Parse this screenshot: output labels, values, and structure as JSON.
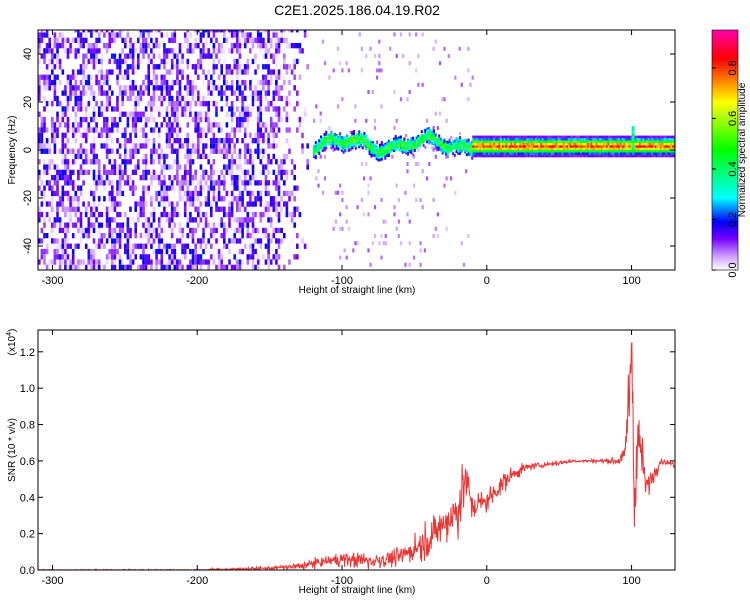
{
  "title": "C2E1.2025.186.04.19.R02",
  "chart_data": [
    {
      "type": "heatmap",
      "xlabel": "Height of straight line (km)",
      "ylabel": "Frequency (Hz)",
      "xlim": [
        -310,
        130
      ],
      "ylim": [
        -50,
        50
      ],
      "xticks": [
        -300,
        -200,
        -100,
        0,
        100
      ],
      "xtick_labels": [
        "-300",
        "-200",
        "-100",
        "0",
        "100"
      ],
      "yticks": [
        -40,
        -20,
        0,
        20,
        40
      ],
      "ytick_labels": [
        "-40",
        "-20",
        "0",
        "20",
        "40"
      ],
      "colorbar": {
        "label": "Normalized spectral amplitude",
        "range": [
          0,
          0.95
        ],
        "ticks": [
          0.0,
          0.2,
          0.4,
          0.6,
          0.8
        ],
        "tick_labels": [
          "0.0",
          "0.2",
          "0.4",
          "0.6",
          "0.8"
        ],
        "colormap": [
          "#ffffff",
          "#cc99ff",
          "#7700ff",
          "#0000ff",
          "#00ffff",
          "#00ff00",
          "#ffff00",
          "#ff0000",
          "#ff00aa"
        ]
      },
      "regions": [
        {
          "x": [
            -310,
            -120
          ],
          "freq_spread": [
            -50,
            50
          ],
          "amplitude": [
            0.0,
            0.2
          ],
          "note_color": "#7a1ef0"
        },
        {
          "x": [
            -120,
            -10
          ],
          "freq_center": [
            0,
            4
          ],
          "amplitude": [
            0.1,
            0.6
          ]
        },
        {
          "x": [
            -10,
            130
          ],
          "freq_center": 1,
          "amplitude": [
            0.3,
            0.9
          ]
        },
        {
          "x": [
            100,
            102
          ],
          "freq_spread": [
            0,
            10
          ],
          "amplitude": [
            0.2,
            0.6
          ]
        }
      ]
    },
    {
      "type": "line",
      "xlabel": "Height of straight line (km)",
      "ylabel": "SNR (10 * v/v)",
      "ylabel_multiplier": "(x10⁴)",
      "multiplier_base": "(x10",
      "multiplier_exp": "4",
      "multiplier_close": ")",
      "xlim": [
        -310,
        130
      ],
      "ylim": [
        0,
        1.32
      ],
      "xticks": [
        -300,
        -200,
        -100,
        0,
        100
      ],
      "xtick_labels": [
        "-300",
        "-200",
        "-100",
        "0",
        "100"
      ],
      "yticks": [
        0.0,
        0.2,
        0.4,
        0.6,
        0.8,
        1.0,
        1.2
      ],
      "ytick_labels": [
        "0.0",
        "0.2",
        "0.4",
        "0.6",
        "0.8",
        "1.0",
        "1.2"
      ],
      "color": "#ee3333",
      "series": [
        {
          "x": [
            -310,
            -250,
            -200,
            -150,
            -130,
            -110,
            -100,
            -80,
            -60,
            -50,
            -40,
            -30,
            -20,
            -15,
            -10,
            0,
            10,
            20,
            30,
            40,
            50,
            60,
            70,
            80,
            90,
            95,
            98,
            100,
            102,
            105,
            110,
            120,
            130
          ],
          "y": [
            0.0,
            0.0,
            0.0,
            0.01,
            0.02,
            0.05,
            0.06,
            0.05,
            0.07,
            0.12,
            0.17,
            0.25,
            0.33,
            0.5,
            0.35,
            0.38,
            0.47,
            0.54,
            0.57,
            0.58,
            0.59,
            0.6,
            0.6,
            0.6,
            0.6,
            0.62,
            0.9,
            1.28,
            0.4,
            0.75,
            0.45,
            0.6,
            0.58
          ],
          "noise_amplitude": [
            0.004,
            0.004,
            0.005,
            0.01,
            0.02,
            0.03,
            0.04,
            0.05,
            0.05,
            0.08,
            0.1,
            0.12,
            0.14,
            0.17,
            0.1,
            0.06,
            0.06,
            0.04,
            0.02,
            0.015,
            0.015,
            0.01,
            0.01,
            0.01,
            0.02,
            0.05,
            0.2,
            0.25,
            0.25,
            0.15,
            0.08,
            0.02,
            0.015
          ]
        }
      ]
    }
  ]
}
